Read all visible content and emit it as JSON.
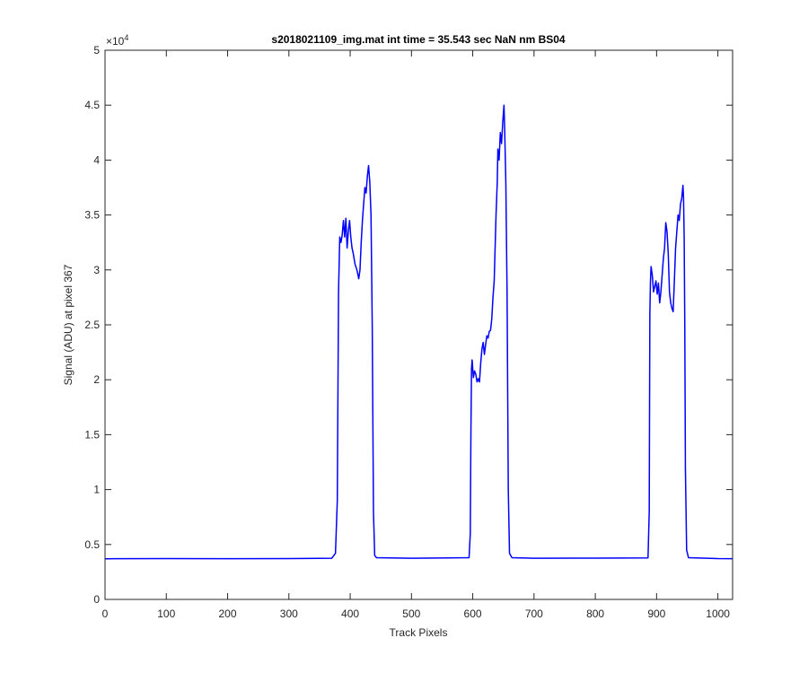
{
  "chart_data": {
    "type": "line",
    "title": "s2018021109_img.mat int time = 35.543 sec  NaN nm BS04",
    "xlabel": "Track Pixels",
    "ylabel": "Signal (ADU) at pixel 367",
    "xlim": [
      0,
      1024
    ],
    "ylim": [
      0,
      50000
    ],
    "xticks": [
      0,
      100,
      200,
      300,
      400,
      500,
      600,
      700,
      800,
      900,
      1000
    ],
    "xtick_labels": [
      "0",
      "100",
      "200",
      "300",
      "400",
      "500",
      "600",
      "700",
      "800",
      "900",
      "1000"
    ],
    "yticks": [
      0,
      5000,
      10000,
      15000,
      20000,
      25000,
      30000,
      35000,
      40000,
      45000,
      50000
    ],
    "ytick_labels": [
      "0",
      "0.5",
      "1",
      "1.5",
      "2",
      "2.5",
      "3",
      "3.5",
      "4",
      "4.5",
      "5"
    ],
    "y_exponent_base": "×10",
    "y_exponent_power": "4",
    "grid": false,
    "series": [
      {
        "color": "#0000ff",
        "points": [
          [
            0,
            3700
          ],
          [
            100,
            3720
          ],
          [
            200,
            3710
          ],
          [
            300,
            3720
          ],
          [
            370,
            3750
          ],
          [
            376,
            4200
          ],
          [
            379,
            9000
          ],
          [
            381,
            28000
          ],
          [
            383,
            33000
          ],
          [
            385,
            32500
          ],
          [
            387,
            33200
          ],
          [
            389,
            34500
          ],
          [
            391,
            33000
          ],
          [
            393,
            34700
          ],
          [
            395,
            32000
          ],
          [
            397,
            33500
          ],
          [
            399,
            34500
          ],
          [
            401,
            33000
          ],
          [
            403,
            32000
          ],
          [
            405,
            31500
          ],
          [
            408,
            30500
          ],
          [
            411,
            30000
          ],
          [
            414,
            29200
          ],
          [
            416,
            30000
          ],
          [
            418,
            32500
          ],
          [
            420,
            34500
          ],
          [
            422,
            36000
          ],
          [
            424,
            37500
          ],
          [
            426,
            37000
          ],
          [
            428,
            38500
          ],
          [
            430,
            39500
          ],
          [
            432,
            38000
          ],
          [
            434,
            35000
          ],
          [
            436,
            25000
          ],
          [
            438,
            8000
          ],
          [
            440,
            4000
          ],
          [
            443,
            3800
          ],
          [
            500,
            3750
          ],
          [
            560,
            3780
          ],
          [
            594,
            3800
          ],
          [
            596,
            6000
          ],
          [
            597,
            15000
          ],
          [
            598,
            21000
          ],
          [
            599,
            21800
          ],
          [
            601,
            20200
          ],
          [
            603,
            20800
          ],
          [
            605,
            20500
          ],
          [
            607,
            19800
          ],
          [
            609,
            20100
          ],
          [
            611,
            19800
          ],
          [
            613,
            21500
          ],
          [
            615,
            22800
          ],
          [
            617,
            23400
          ],
          [
            619,
            22300
          ],
          [
            621,
            23200
          ],
          [
            623,
            24000
          ],
          [
            625,
            23800
          ],
          [
            627,
            24400
          ],
          [
            629,
            24500
          ],
          [
            631,
            25500
          ],
          [
            633,
            27500
          ],
          [
            635,
            29000
          ],
          [
            636,
            31000
          ],
          [
            638,
            35000
          ],
          [
            640,
            38000
          ],
          [
            641,
            41000
          ],
          [
            643,
            40000
          ],
          [
            645,
            42500
          ],
          [
            647,
            41500
          ],
          [
            649,
            43500
          ],
          [
            651,
            45000
          ],
          [
            652,
            43000
          ],
          [
            654,
            38000
          ],
          [
            656,
            28000
          ],
          [
            658,
            10000
          ],
          [
            660,
            4200
          ],
          [
            664,
            3800
          ],
          [
            700,
            3750
          ],
          [
            800,
            3760
          ],
          [
            886,
            3780
          ],
          [
            888,
            8000
          ],
          [
            889,
            26000
          ],
          [
            890,
            29000
          ],
          [
            891,
            30300
          ],
          [
            893,
            29500
          ],
          [
            895,
            28000
          ],
          [
            897,
            28500
          ],
          [
            899,
            29000
          ],
          [
            901,
            27800
          ],
          [
            903,
            28800
          ],
          [
            905,
            27000
          ],
          [
            907,
            28000
          ],
          [
            909,
            29500
          ],
          [
            911,
            31000
          ],
          [
            913,
            32000
          ],
          [
            915,
            34300
          ],
          [
            917,
            33500
          ],
          [
            919,
            31500
          ],
          [
            921,
            28000
          ],
          [
            923,
            27000
          ],
          [
            925,
            26500
          ],
          [
            927,
            26200
          ],
          [
            929,
            29000
          ],
          [
            931,
            32000
          ],
          [
            933,
            33500
          ],
          [
            935,
            35000
          ],
          [
            937,
            34500
          ],
          [
            939,
            36000
          ],
          [
            941,
            36500
          ],
          [
            943,
            37700
          ],
          [
            944,
            36500
          ],
          [
            945,
            33000
          ],
          [
            946,
            25000
          ],
          [
            947,
            12000
          ],
          [
            949,
            4500
          ],
          [
            952,
            3800
          ],
          [
            1000,
            3720
          ],
          [
            1024,
            3710
          ]
        ]
      }
    ]
  }
}
